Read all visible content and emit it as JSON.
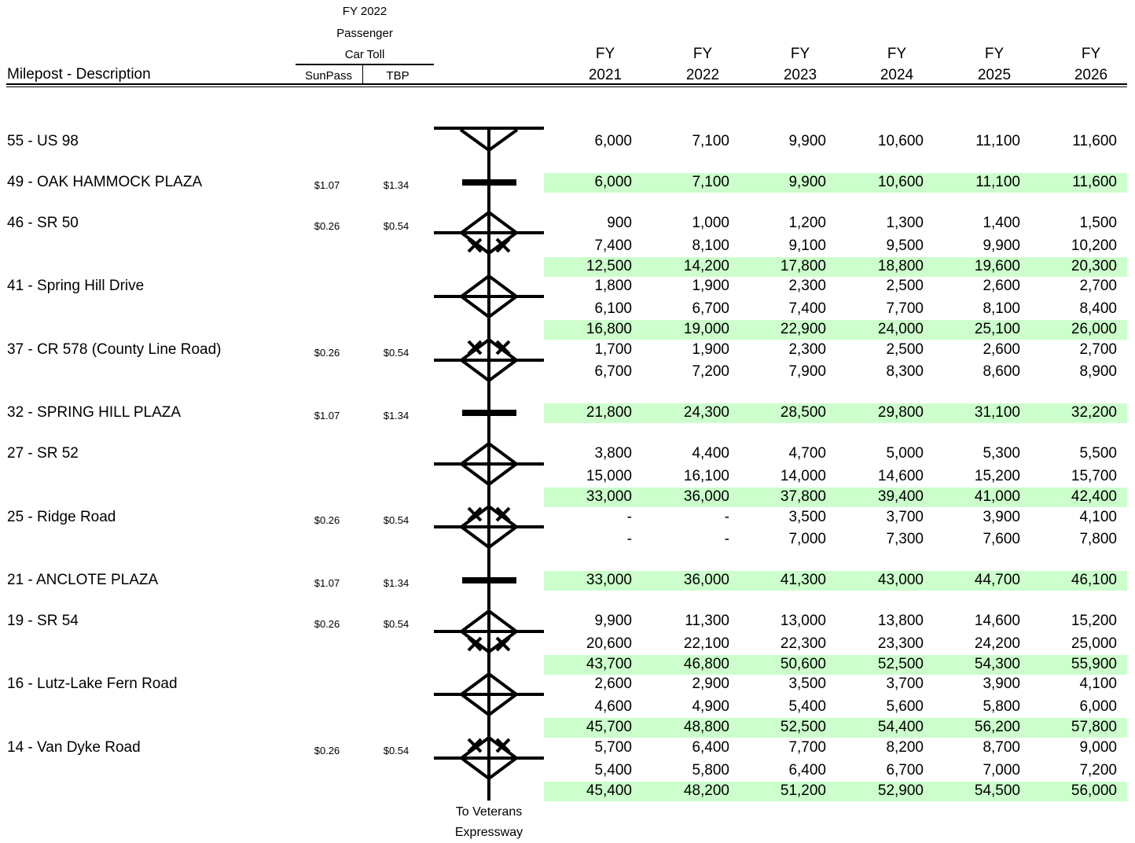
{
  "header": {
    "fy_line": "FY 2022",
    "passenger_line": "Passenger",
    "cartoll_line": "Car Toll",
    "description_label": "Milepost - Description",
    "sunpass_label": "SunPass",
    "tbp_label": "TBP",
    "years": [
      {
        "fy": "FY",
        "year": "2021"
      },
      {
        "fy": "FY",
        "year": "2022"
      },
      {
        "fy": "FY",
        "year": "2023"
      },
      {
        "fy": "FY",
        "year": "2024"
      },
      {
        "fy": "FY",
        "year": "2025"
      },
      {
        "fy": "FY",
        "year": "2026"
      }
    ]
  },
  "colors": {
    "highlight_band": "#ccffcc",
    "line": "#000000"
  },
  "locations": [
    {
      "label": "55 - US 98",
      "sunpass": "",
      "tbp": "",
      "symbol": "terminal-interchange-icon"
    },
    {
      "label": "49 - OAK HAMMOCK PLAZA",
      "sunpass": "$1.07",
      "tbp": "$1.34",
      "symbol": "toll-plaza-icon"
    },
    {
      "label": "46 - SR 50",
      "sunpass": "$0.26",
      "tbp": "$0.54",
      "symbol": "diamond-interchange-lower-toll-icon"
    },
    {
      "label": "41 - Spring Hill Drive",
      "sunpass": "",
      "tbp": "",
      "symbol": "diamond-interchange-icon"
    },
    {
      "label": "37 - CR 578 (County Line Road)",
      "sunpass": "$0.26",
      "tbp": "$0.54",
      "symbol": "diamond-interchange-upper-toll-icon"
    },
    {
      "label": "32 - SPRING HILL PLAZA",
      "sunpass": "$1.07",
      "tbp": "$1.34",
      "symbol": "toll-plaza-icon"
    },
    {
      "label": "27 - SR 52",
      "sunpass": "",
      "tbp": "",
      "symbol": "diamond-interchange-icon"
    },
    {
      "label": "25 - Ridge Road",
      "sunpass": "$0.26",
      "tbp": "$0.54",
      "symbol": "diamond-interchange-upper-toll-icon"
    },
    {
      "label": "21 - ANCLOTE PLAZA",
      "sunpass": "$1.07",
      "tbp": "$1.34",
      "symbol": "toll-plaza-icon"
    },
    {
      "label": "19 - SR 54",
      "sunpass": "$0.26",
      "tbp": "$0.54",
      "symbol": "diamond-interchange-lower-toll-icon"
    },
    {
      "label": "16 - Lutz-Lake Fern Road",
      "sunpass": "",
      "tbp": "",
      "symbol": "diamond-interchange-icon"
    },
    {
      "label": "14 - Van Dyke Road",
      "sunpass": "$0.26",
      "tbp": "$0.54",
      "symbol": "diamond-interchange-upper-toll-icon"
    }
  ],
  "rows": [
    {
      "values": [
        "6,000",
        "7,100",
        "9,900",
        "10,600",
        "11,100",
        "11,600"
      ],
      "highlight": false
    },
    {
      "values": [
        "6,000",
        "7,100",
        "9,900",
        "10,600",
        "11,100",
        "11,600"
      ],
      "highlight": true
    },
    {
      "values": [
        "900",
        "1,000",
        "1,200",
        "1,300",
        "1,400",
        "1,500"
      ],
      "highlight": false
    },
    {
      "values": [
        "7,400",
        "8,100",
        "9,100",
        "9,500",
        "9,900",
        "10,200"
      ],
      "highlight": false
    },
    {
      "values": [
        "12,500",
        "14,200",
        "17,800",
        "18,800",
        "19,600",
        "20,300"
      ],
      "highlight": true
    },
    {
      "values": [
        "1,800",
        "1,900",
        "2,300",
        "2,500",
        "2,600",
        "2,700"
      ],
      "highlight": false
    },
    {
      "values": [
        "6,100",
        "6,700",
        "7,400",
        "7,700",
        "8,100",
        "8,400"
      ],
      "highlight": false
    },
    {
      "values": [
        "16,800",
        "19,000",
        "22,900",
        "24,000",
        "25,100",
        "26,000"
      ],
      "highlight": true
    },
    {
      "values": [
        "1,700",
        "1,900",
        "2,300",
        "2,500",
        "2,600",
        "2,700"
      ],
      "highlight": false
    },
    {
      "values": [
        "6,700",
        "7,200",
        "7,900",
        "8,300",
        "8,600",
        "8,900"
      ],
      "highlight": false
    },
    {
      "values": [
        "21,800",
        "24,300",
        "28,500",
        "29,800",
        "31,100",
        "32,200"
      ],
      "highlight": true
    },
    {
      "values": [
        "3,800",
        "4,400",
        "4,700",
        "5,000",
        "5,300",
        "5,500"
      ],
      "highlight": false
    },
    {
      "values": [
        "15,000",
        "16,100",
        "14,000",
        "14,600",
        "15,200",
        "15,700"
      ],
      "highlight": false
    },
    {
      "values": [
        "33,000",
        "36,000",
        "37,800",
        "39,400",
        "41,000",
        "42,400"
      ],
      "highlight": true
    },
    {
      "values": [
        "-",
        "-",
        "3,500",
        "3,700",
        "3,900",
        "4,100"
      ],
      "highlight": false
    },
    {
      "values": [
        "-",
        "-",
        "7,000",
        "7,300",
        "7,600",
        "7,800"
      ],
      "highlight": false
    },
    {
      "values": [
        "33,000",
        "36,000",
        "41,300",
        "43,000",
        "44,700",
        "46,100"
      ],
      "highlight": true
    },
    {
      "values": [
        "9,900",
        "11,300",
        "13,000",
        "13,800",
        "14,600",
        "15,200"
      ],
      "highlight": false
    },
    {
      "values": [
        "20,600",
        "22,100",
        "22,300",
        "23,300",
        "24,200",
        "25,000"
      ],
      "highlight": false
    },
    {
      "values": [
        "43,700",
        "46,800",
        "50,600",
        "52,500",
        "54,300",
        "55,900"
      ],
      "highlight": true
    },
    {
      "values": [
        "2,600",
        "2,900",
        "3,500",
        "3,700",
        "3,900",
        "4,100"
      ],
      "highlight": false
    },
    {
      "values": [
        "4,600",
        "4,900",
        "5,400",
        "5,600",
        "5,800",
        "6,000"
      ],
      "highlight": false
    },
    {
      "values": [
        "45,700",
        "48,800",
        "52,500",
        "54,400",
        "56,200",
        "57,800"
      ],
      "highlight": true
    },
    {
      "values": [
        "5,700",
        "6,400",
        "7,700",
        "8,200",
        "8,700",
        "9,000"
      ],
      "highlight": false
    },
    {
      "values": [
        "5,400",
        "5,800",
        "6,400",
        "6,700",
        "7,000",
        "7,200"
      ],
      "highlight": false
    },
    {
      "values": [
        "45,400",
        "48,200",
        "51,200",
        "52,900",
        "54,500",
        "56,000"
      ],
      "highlight": true
    }
  ],
  "footer": {
    "line1": "To Veterans",
    "line2": "Expressway"
  }
}
